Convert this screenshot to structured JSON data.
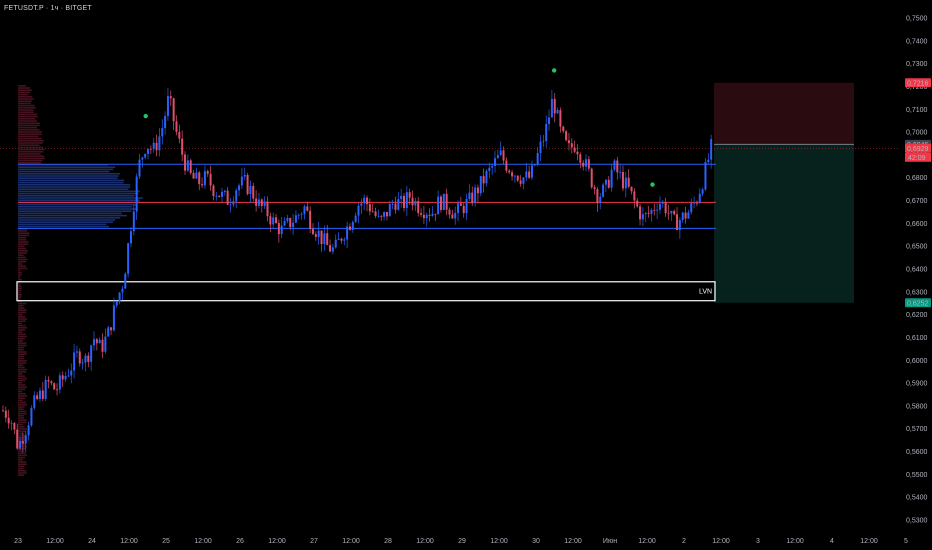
{
  "header": {
    "symbol_line": "FETUSDT.P · 1ч · BITGET"
  },
  "colors": {
    "background": "#000000",
    "candle_up": "#2962ff",
    "candle_down": "#f23645",
    "candle_down_shown": "#e0506e",
    "support_line": "#2962ff",
    "poc_line": "#f23645",
    "stop_zone": "#2a0c10",
    "target_zone": "#07221c",
    "price_tag_red": "#f23645",
    "price_tag_green": "#089981",
    "marker_green": "#22c55e"
  },
  "chart_data": {
    "type": "candlestick",
    "title": "",
    "y_axis": {
      "ticks": [
        "0,7500",
        "0,7400",
        "0,7300",
        "0,7200",
        "0,7100",
        "0,7000",
        "0,6900",
        "0,6800",
        "0,6700",
        "0,6600",
        "0,6500",
        "0,6400",
        "0,6300",
        "0,6200",
        "0,6100",
        "0,6000",
        "0,5900",
        "0,5800",
        "0,5700",
        "0,5600",
        "0,5500",
        "0,5400",
        "0,5300"
      ],
      "min": 0.53,
      "max": 0.75
    },
    "x_axis": {
      "ticks": [
        "23",
        "12:00",
        "24",
        "12:00",
        "25",
        "12:00",
        "26",
        "12:00",
        "27",
        "12:00",
        "28",
        "12:00",
        "29",
        "12:00",
        "30",
        "12:00",
        "Июн",
        "12:00",
        "2",
        "12:00",
        "3",
        "12:00",
        "4",
        "12:00",
        "5"
      ]
    },
    "levels": [
      {
        "name": "upper",
        "price": 0.6859
      },
      {
        "name": "poc",
        "price": 0.6692
      },
      {
        "name": "lower",
        "price": 0.6578
      }
    ],
    "lvn_zone": {
      "label": "LVN",
      "top": 0.6344,
      "bottom": 0.6261
    },
    "position": {
      "stop_label": "0,7216",
      "stop": 0.7216,
      "entry_label": "0,6946",
      "entry": 0.6946,
      "current_label": "0,6929",
      "current": 0.6929,
      "timer_label": "42:09",
      "target_label": "0,6252",
      "target": 0.6252
    },
    "ohlc_trend": {
      "close": [
        0.578,
        0.575,
        0.562,
        0.57,
        0.58,
        0.585,
        0.59,
        0.587,
        0.592,
        0.597,
        0.603,
        0.6,
        0.61,
        0.605,
        0.612,
        0.625,
        0.635,
        0.66,
        0.685,
        0.695,
        0.692,
        0.7,
        0.715,
        0.7,
        0.688,
        0.68,
        0.678,
        0.68,
        0.675,
        0.672,
        0.67,
        0.676,
        0.678,
        0.674,
        0.668,
        0.665,
        0.66,
        0.657,
        0.66,
        0.663,
        0.667,
        0.66,
        0.655,
        0.65,
        0.648,
        0.655,
        0.66,
        0.668,
        0.67,
        0.666,
        0.66,
        0.665,
        0.67,
        0.668,
        0.672,
        0.668,
        0.666,
        0.665,
        0.67,
        0.668,
        0.664,
        0.667,
        0.67,
        0.675,
        0.68,
        0.685,
        0.69,
        0.685,
        0.682,
        0.68,
        0.68,
        0.69,
        0.7,
        0.715,
        0.7,
        0.692,
        0.695,
        0.688,
        0.68,
        0.672,
        0.675,
        0.685,
        0.68,
        0.675,
        0.668,
        0.662,
        0.665,
        0.67,
        0.667,
        0.66,
        0.662,
        0.665,
        0.67,
        0.68,
        0.693
      ]
    },
    "markers": [
      {
        "type": "dot",
        "color": "green",
        "index": 19
      },
      {
        "type": "dot",
        "color": "green",
        "index": 73
      },
      {
        "type": "dot",
        "color": "green",
        "index": 86
      }
    ]
  }
}
